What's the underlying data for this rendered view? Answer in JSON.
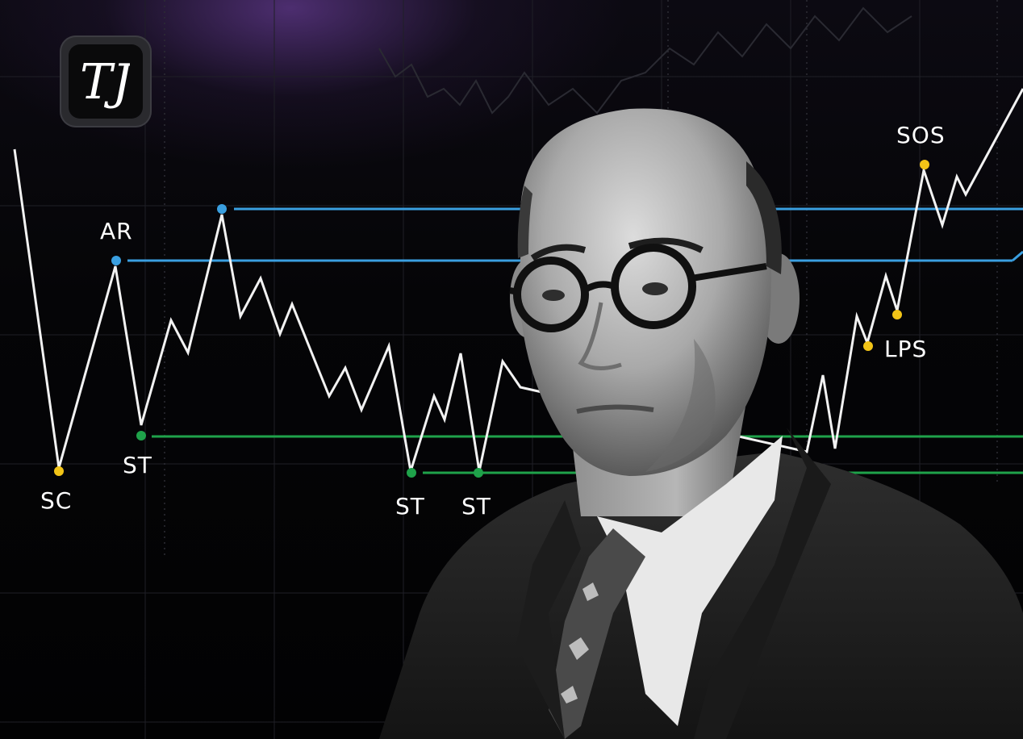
{
  "logo": {
    "icon": "monogram-logo-icon",
    "letters": "TJ"
  },
  "chart_data": {
    "type": "line",
    "annotations": [
      {
        "label": "SC",
        "color": "#f2c417"
      },
      {
        "label": "AR",
        "color": "#3a9fe0"
      },
      {
        "label": "ST",
        "color": "#1fa24a"
      },
      {
        "label": "ST",
        "color": "#1fa24a"
      },
      {
        "label": "ST",
        "color": "#1fa24a"
      },
      {
        "label": "LPS",
        "color": "#f2c417"
      },
      {
        "label": "SOS",
        "color": "#f2c417"
      }
    ],
    "colors": {
      "price_line": "#f2f2f2",
      "resistance": "#3a9fe0",
      "support": "#1fa24a",
      "highlight": "#f2c417"
    }
  },
  "portrait": {
    "icon": "man-portrait-photo"
  }
}
